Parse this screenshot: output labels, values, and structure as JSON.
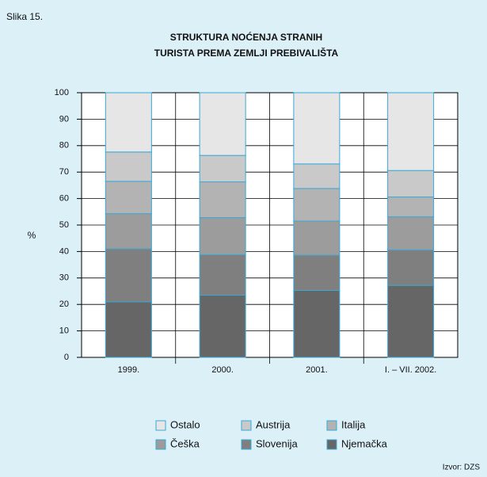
{
  "figure_label": "Slika 15.",
  "source": "Izvor: DZS",
  "chart_data": {
    "type": "stacked_bar",
    "title_lines": [
      "STRUKTURA NOĆENJA STRANIH",
      "TURISTA PREMA ZEMLJI PREBIVALIŠTA"
    ],
    "ylabel": "%",
    "categories": [
      "1999.",
      "2000.",
      "2001.",
      "I. – VII. 2002."
    ],
    "series": [
      {
        "name": "Njemačka",
        "color": "#666666",
        "values": [
          21,
          23.5,
          25.3,
          27.2
        ]
      },
      {
        "name": "Slovenija",
        "color": "#7f7f7f",
        "values": [
          20,
          15.3,
          13.3,
          13.4
        ]
      },
      {
        "name": "Češka",
        "color": "#9c9c9c",
        "values": [
          13.3,
          14,
          12.9,
          12.5
        ]
      },
      {
        "name": "Italija",
        "color": "#b3b3b3",
        "values": [
          12.2,
          13.5,
          12.3,
          7.5
        ]
      },
      {
        "name": "Austrija",
        "color": "#c9c9c9",
        "values": [
          11.1,
          10,
          9.3,
          10
        ]
      },
      {
        "name": "Ostalo",
        "color": "#e6e6e6",
        "values": [
          22.4,
          23.7,
          26.9,
          29.4
        ]
      }
    ],
    "ylim": [
      0,
      100
    ],
    "yticks": [
      0,
      10,
      20,
      30,
      40,
      50,
      60,
      70,
      80,
      90,
      100
    ],
    "grid": true
  }
}
